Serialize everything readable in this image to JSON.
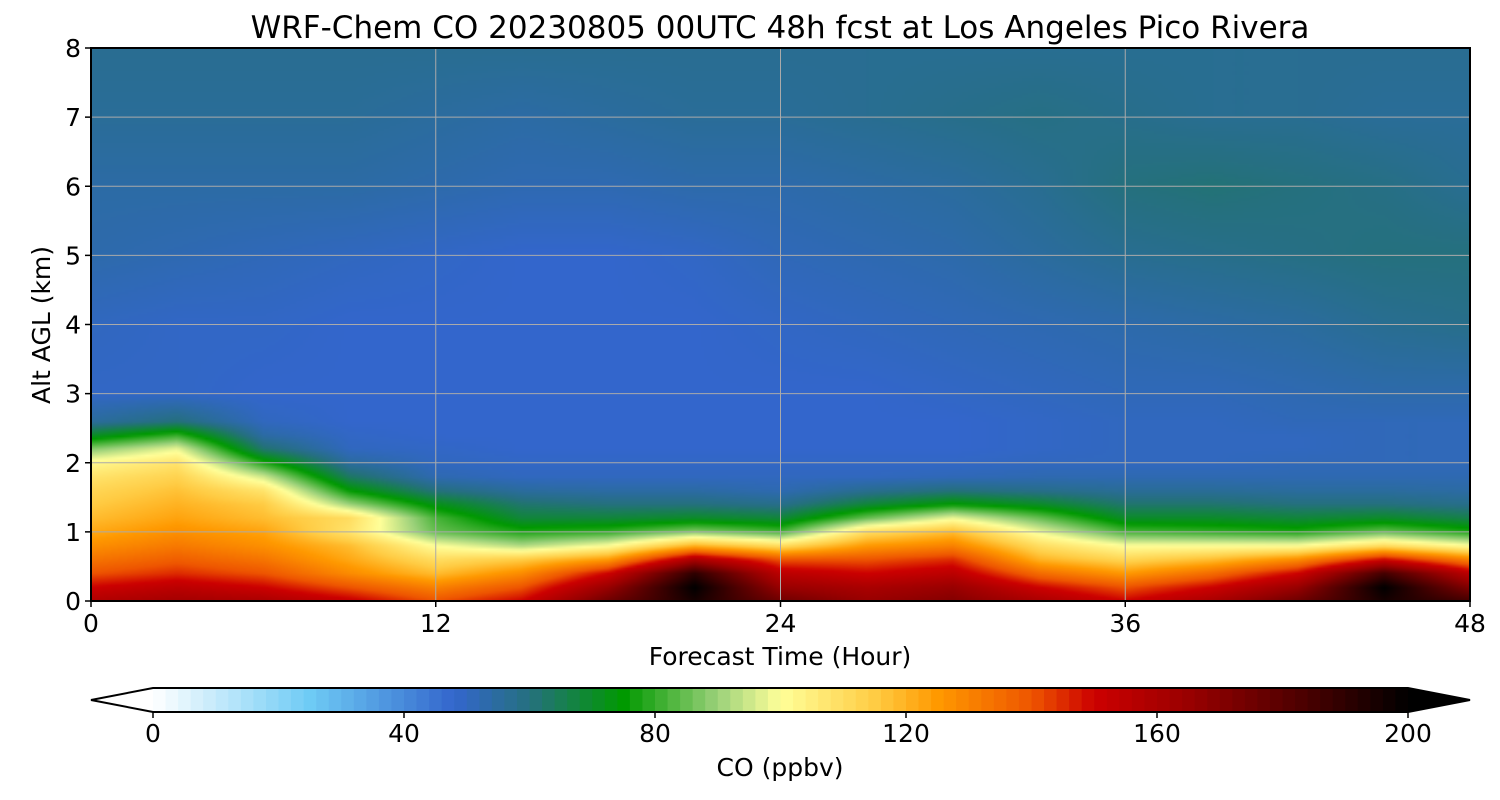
{
  "chart_data": {
    "type": "heatmap",
    "title": "WRF-Chem CO  20230805 00UTC 48h fcst at Los Angeles Pico Rivera",
    "xlabel": "Forecast Time (Hour)",
    "ylabel": "Alt AGL (km)",
    "xlim": [
      0,
      48
    ],
    "ylim": [
      0,
      8
    ],
    "xticks": [
      "0",
      "12",
      "24",
      "36",
      "48"
    ],
    "yticks": [
      "0",
      "1",
      "2",
      "3",
      "4",
      "5",
      "6",
      "7",
      "8"
    ],
    "grid": true,
    "colorbar": {
      "label": "CO  (ppbv)",
      "min": 0,
      "max": 200,
      "extend": "both",
      "ticks": [
        "0",
        "40",
        "80",
        "120",
        "160",
        "200"
      ],
      "stops": [
        {
          "value": 0,
          "color": "#ffffff"
        },
        {
          "value": 25,
          "color": "#6ecbf5"
        },
        {
          "value": 48,
          "color": "#3366cc"
        },
        {
          "value": 60,
          "color": "#25707e"
        },
        {
          "value": 75,
          "color": "#009900"
        },
        {
          "value": 90,
          "color": "#9bd17a"
        },
        {
          "value": 100,
          "color": "#ffff99"
        },
        {
          "value": 115,
          "color": "#ffcc44"
        },
        {
          "value": 125,
          "color": "#ff9900"
        },
        {
          "value": 140,
          "color": "#ee5500"
        },
        {
          "value": 150,
          "color": "#cc0000"
        },
        {
          "value": 165,
          "color": "#990000"
        },
        {
          "value": 185,
          "color": "#440000"
        },
        {
          "value": 200,
          "color": "#000000"
        }
      ]
    },
    "field": {
      "x_hours": [
        0,
        3,
        6,
        9,
        12,
        15,
        18,
        21,
        24,
        27,
        30,
        33,
        36,
        39,
        42,
        45,
        48
      ],
      "alt_km": [
        0,
        0.2,
        0.4,
        0.6,
        0.8,
        1.0,
        1.2,
        1.4,
        1.6,
        1.8,
        2.0,
        2.2,
        2.4,
        2.6,
        3.0,
        4.0,
        5.0,
        6.0,
        7.0,
        8.0
      ],
      "co_ppbv": [
        [
          158,
          162,
          160,
          152,
          140,
          150,
          175,
          195,
          175,
          165,
          170,
          160,
          150,
          160,
          175,
          195,
          185
        ],
        [
          150,
          155,
          150,
          140,
          130,
          140,
          165,
          200,
          165,
          160,
          165,
          150,
          140,
          150,
          165,
          200,
          170
        ],
        [
          140,
          145,
          140,
          128,
          118,
          128,
          150,
          190,
          155,
          150,
          155,
          135,
          125,
          135,
          150,
          185,
          155
        ],
        [
          133,
          138,
          133,
          122,
          110,
          115,
          125,
          160,
          140,
          140,
          145,
          120,
          112,
          118,
          128,
          150,
          130
        ],
        [
          127,
          132,
          127,
          118,
          100,
          92,
          100,
          120,
          110,
          125,
          130,
          110,
          100,
          100,
          100,
          110,
          100
        ],
        [
          122,
          127,
          123,
          108,
          85,
          78,
          80,
          88,
          82,
          110,
          118,
          98,
          82,
          80,
          78,
          85,
          78
        ],
        [
          118,
          123,
          118,
          110,
          82,
          68,
          68,
          70,
          68,
          85,
          98,
          85,
          70,
          70,
          68,
          70,
          66
        ],
        [
          115,
          120,
          115,
          90,
          72,
          62,
          60,
          60,
          58,
          68,
          75,
          70,
          62,
          62,
          60,
          60,
          58
        ],
        [
          112,
          117,
          108,
          75,
          60,
          55,
          54,
          54,
          52,
          57,
          60,
          58,
          56,
          56,
          55,
          55,
          54
        ],
        [
          108,
          113,
          95,
          63,
          52,
          50,
          50,
          50,
          50,
          50,
          51,
          52,
          52,
          52,
          52,
          52,
          52
        ],
        [
          102,
          108,
          78,
          55,
          50,
          49,
          49,
          49,
          49,
          49,
          49,
          50,
          50,
          50,
          51,
          51,
          51
        ],
        [
          88,
          98,
          62,
          50,
          49,
          48,
          48,
          48,
          48,
          48,
          48,
          49,
          50,
          50,
          50,
          51,
          51
        ],
        [
          70,
          80,
          54,
          49,
          48,
          48,
          48,
          48,
          48,
          48,
          48,
          49,
          50,
          50,
          50,
          51,
          51
        ],
        [
          55,
          60,
          50,
          48,
          48,
          48,
          48,
          48,
          48,
          48,
          48,
          49,
          50,
          50,
          51,
          51,
          51
        ],
        [
          49,
          49,
          48,
          48,
          48,
          48,
          48,
          48,
          48,
          48,
          49,
          50,
          51,
          51,
          52,
          53,
          53
        ],
        [
          50,
          49,
          49,
          48,
          48,
          48,
          48,
          48,
          49,
          50,
          51,
          52,
          53,
          54,
          55,
          57,
          58
        ],
        [
          53,
          52,
          51,
          50,
          49,
          48,
          48,
          49,
          51,
          52,
          53,
          55,
          57,
          58,
          59,
          60,
          60
        ],
        [
          54,
          54,
          54,
          54,
          53,
          52,
          52,
          53,
          53,
          54,
          55,
          57,
          60,
          61,
          60,
          59,
          57
        ],
        [
          56,
          56,
          56,
          56,
          55,
          54,
          55,
          56,
          56,
          57,
          58,
          59,
          58,
          57,
          57,
          56,
          56
        ],
        [
          57,
          57,
          57,
          57,
          57,
          57,
          57,
          57,
          57,
          57,
          57,
          57,
          57,
          57,
          57,
          57,
          57
        ]
      ]
    }
  }
}
